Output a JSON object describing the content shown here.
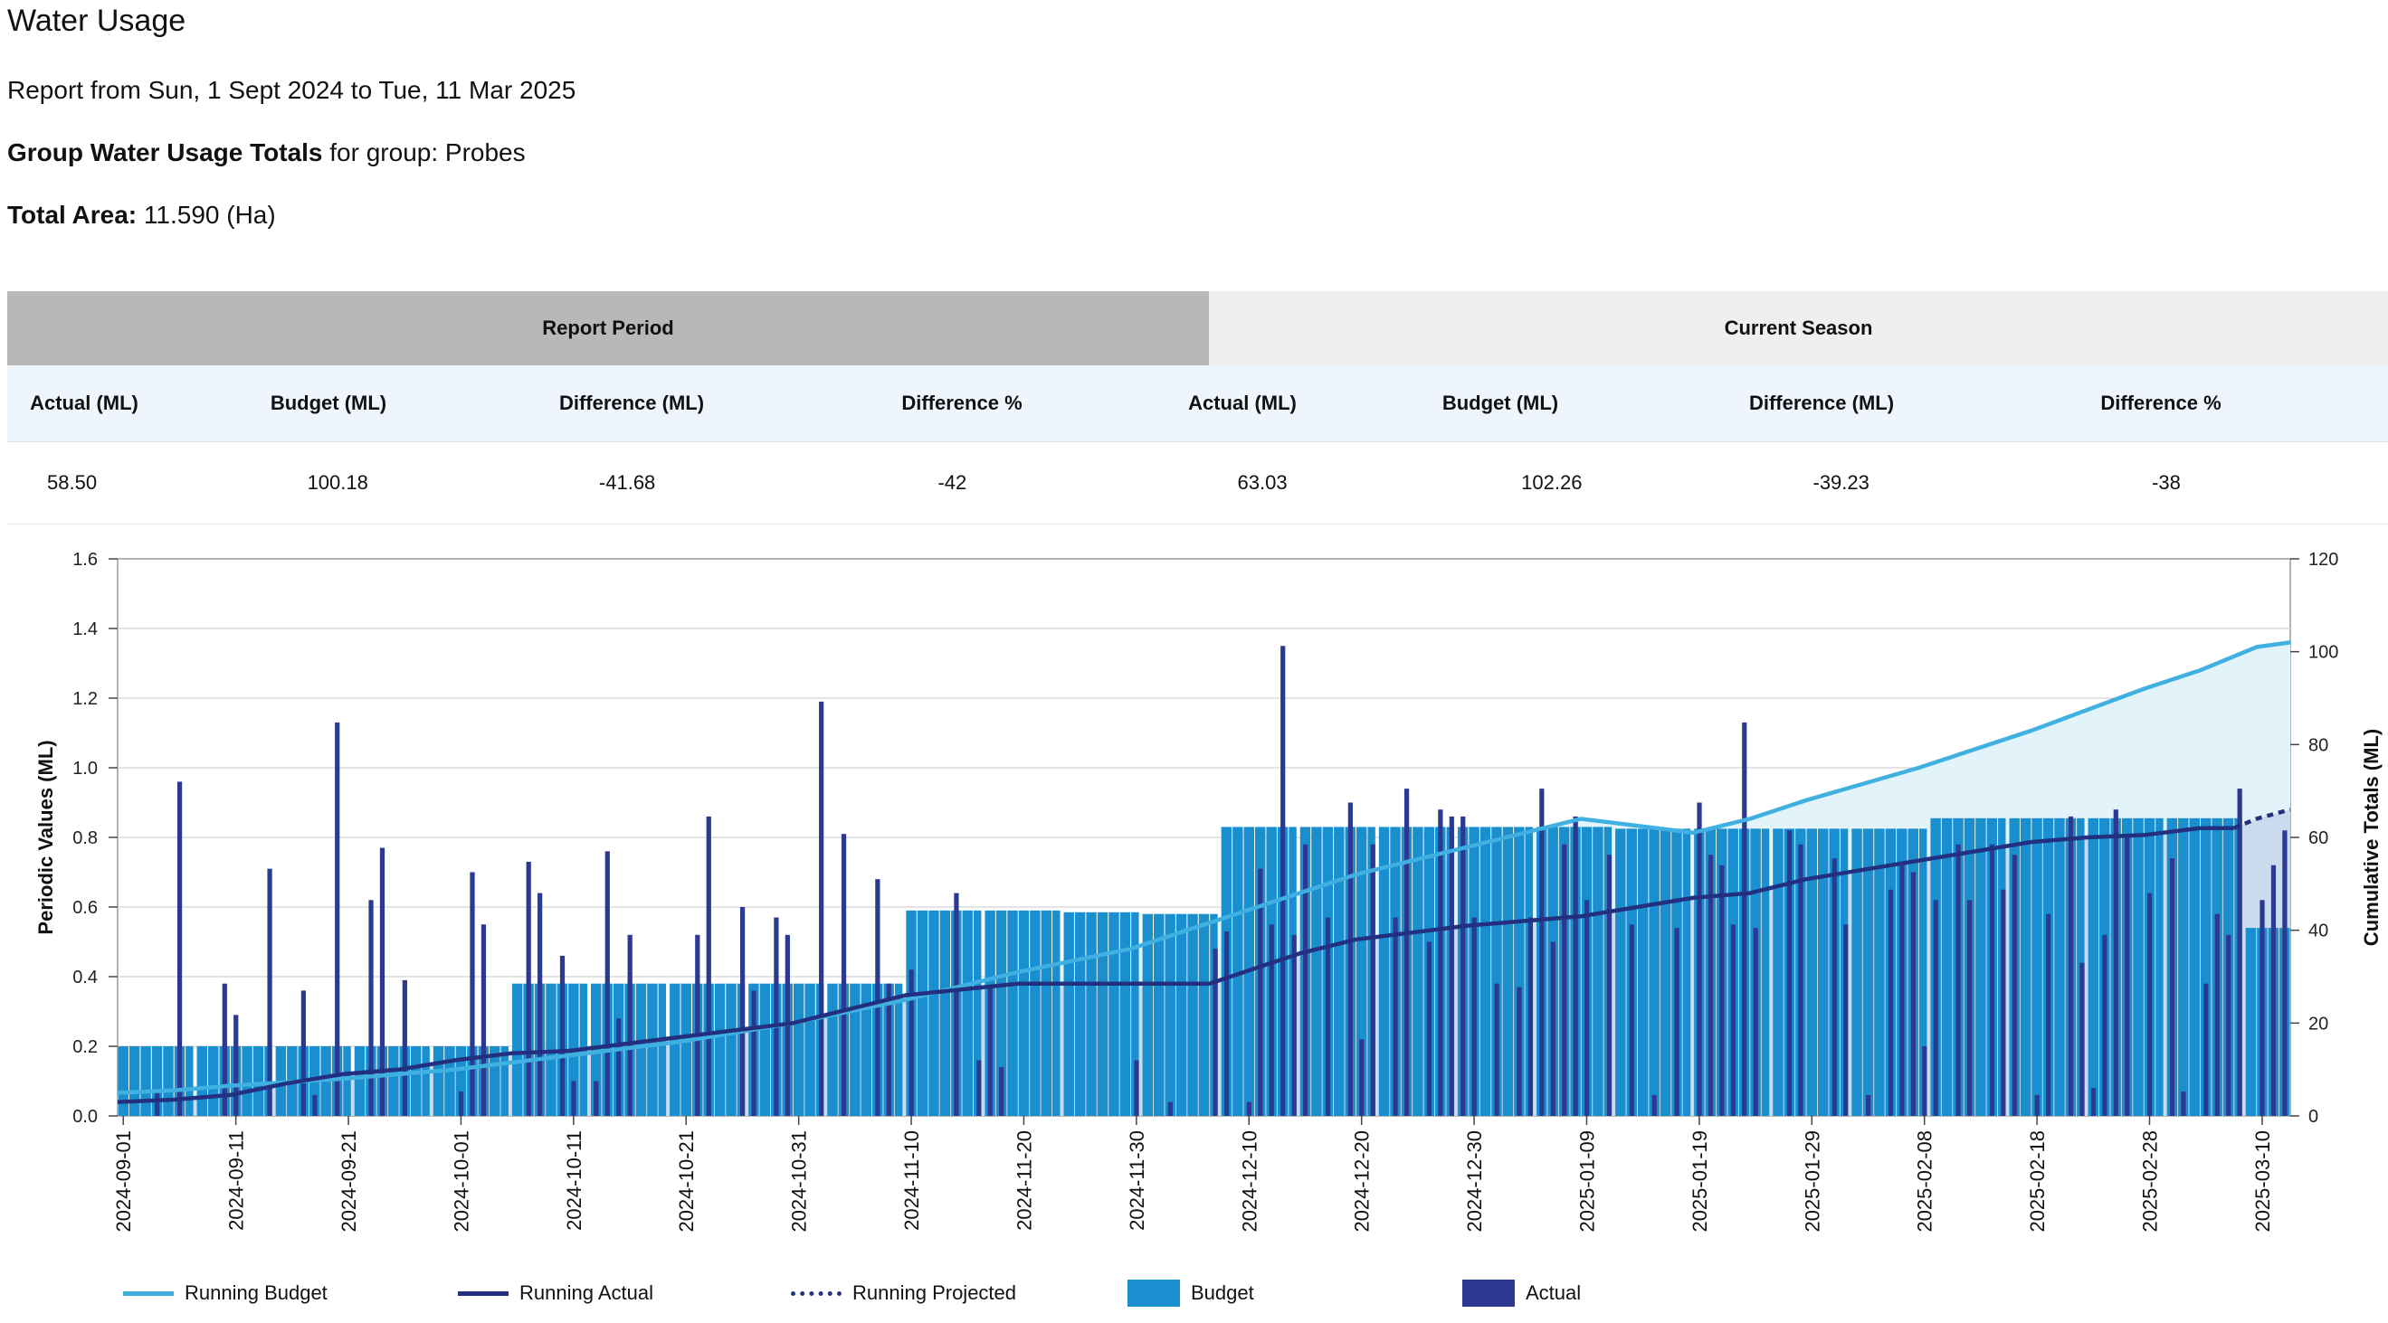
{
  "page": {
    "title": "Water Usage",
    "report_prefix": "Report from",
    "report_range": "Sun, 1 Sept 2024 to Tue, 11 Mar 2025",
    "group_label": "Group Water Usage Totals",
    "group_suffix": "for group: Probes",
    "area_label": "Total Area:",
    "area_value": "11.590 (Ha)"
  },
  "table": {
    "report_period": "Report Period",
    "current_season": "Current Season",
    "columns": [
      "Actual (ML)",
      "Budget (ML)",
      "Difference (ML)",
      "Difference %",
      "Actual (ML)",
      "Budget (ML)",
      "Difference (ML)",
      "Difference %"
    ],
    "values": [
      "58.50",
      "100.18",
      "-41.68",
      "-42",
      "63.03",
      "102.26",
      "-39.23",
      "-38"
    ]
  },
  "colors": {
    "budget_bar": "#1a8fd0",
    "actual_bar": "#2b3990",
    "running_budget": "#3fb0e0",
    "running_actual": "#23307f",
    "budget_area": "#e3f3fa",
    "actual_area": "#c9dbec"
  },
  "chart_data": {
    "type": "bar",
    "ylabel": "Periodic Values (ML)",
    "y2label": "Cumulative Totals (ML)",
    "ylim": [
      0,
      1.6
    ],
    "y2lim": [
      0,
      120
    ],
    "yticks": [
      "0.0",
      "0.2",
      "0.4",
      "0.6",
      "0.8",
      "1.0",
      "1.2",
      "1.4",
      "1.6"
    ],
    "y2ticks": [
      "0",
      "20",
      "40",
      "60",
      "80",
      "100",
      "120"
    ],
    "xticks": [
      "2024-09-01",
      "2024-09-11",
      "2024-09-21",
      "2024-10-01",
      "2024-10-11",
      "2024-10-21",
      "2024-10-31",
      "2024-11-10",
      "2024-11-20",
      "2024-11-30",
      "2024-12-10",
      "2024-12-20",
      "2024-12-30",
      "2025-01-09",
      "2025-01-19",
      "2025-01-29",
      "2025-02-08",
      "2025-02-18",
      "2025-02-28",
      "2025-03-10"
    ],
    "start_date": "2024-09-01",
    "num_days": 193,
    "weekly_budget": [
      0.2,
      0.2,
      0.2,
      0.2,
      0.2,
      0.38,
      0.38,
      0.38,
      0.38,
      0.38,
      0.59,
      0.59,
      0.585,
      0.58,
      0.83,
      0.83,
      0.83,
      0.83,
      0.83,
      0.825,
      0.825,
      0.825,
      0.825,
      0.855,
      0.855,
      0.855,
      0.855,
      0.54,
      0.54
    ],
    "actual_spikes": {
      "3": 0.07,
      "5": 0.96,
      "9": 0.38,
      "10": 0.29,
      "13": 0.71,
      "16": 0.36,
      "17": 0.06,
      "19": 1.13,
      "22": 0.62,
      "23": 0.77,
      "25": 0.39,
      "30": 0.07,
      "31": 0.7,
      "32": 0.55,
      "36": 0.73,
      "37": 0.64,
      "39": 0.46,
      "40": 0.1,
      "42": 0.1,
      "43": 0.76,
      "44": 0.28,
      "45": 0.52,
      "51": 0.52,
      "52": 0.86,
      "55": 0.6,
      "56": 0.36,
      "58": 0.57,
      "59": 0.52,
      "62": 1.19,
      "64": 0.81,
      "67": 0.68,
      "68": 0.38,
      "70": 0.42,
      "74": 0.64,
      "76": 0.16,
      "77": 0.37,
      "78": 0.14,
      "90": 0.16,
      "93": 0.04,
      "97": 0.48,
      "98": 0.53,
      "100": 0.04,
      "101": 0.71,
      "102": 0.55,
      "103": 1.35,
      "104": 0.52,
      "105": 0.78,
      "107": 0.57,
      "109": 0.9,
      "110": 0.22,
      "111": 0.78,
      "113": 0.57,
      "114": 0.94,
      "116": 0.5,
      "117": 0.88,
      "118": 0.86,
      "119": 0.86,
      "120": 0.57,
      "122": 0.38,
      "124": 0.37,
      "125": 0.57,
      "126": 0.94,
      "127": 0.5,
      "128": 0.78,
      "129": 0.86,
      "130": 0.62,
      "132": 0.75,
      "134": 0.55,
      "136": 0.06,
      "138": 0.54,
      "140": 0.9,
      "141": 0.75,
      "142": 0.72,
      "143": 0.55,
      "144": 1.13,
      "145": 0.54,
      "148": 0.82,
      "149": 0.78,
      "152": 0.74,
      "153": 0.55,
      "155": 0.06,
      "157": 0.65,
      "158": 0.72,
      "159": 0.7,
      "160": 0.2,
      "161": 0.62,
      "163": 0.78,
      "164": 0.62,
      "166": 0.78,
      "167": 0.65,
      "168": 0.75,
      "170": 0.06,
      "171": 0.58,
      "173": 0.86,
      "174": 0.44,
      "175": 0.08,
      "176": 0.52,
      "177": 0.88,
      "178": 0.8,
      "180": 0.64,
      "182": 0.74,
      "183": 0.07,
      "185": 0.38,
      "186": 0.58,
      "187": 0.52,
      "188": 0.94,
      "190": 0.62,
      "191": 0.72,
      "192": 0.82
    },
    "running_budget_points": [
      [
        0,
        5
      ],
      [
        5,
        5.5
      ],
      [
        10,
        6.5
      ],
      [
        20,
        8
      ],
      [
        30,
        10
      ],
      [
        40,
        13
      ],
      [
        50,
        16
      ],
      [
        60,
        20
      ],
      [
        70,
        25
      ],
      [
        80,
        31
      ],
      [
        90,
        36
      ],
      [
        100,
        44
      ],
      [
        110,
        52
      ],
      [
        120,
        58
      ],
      [
        130,
        64
      ],
      [
        140,
        61
      ],
      [
        145,
        64
      ],
      [
        150,
        68
      ],
      [
        160,
        75
      ],
      [
        170,
        83
      ],
      [
        180,
        92
      ],
      [
        185,
        96
      ],
      [
        190,
        101
      ],
      [
        193,
        102
      ]
    ],
    "running_actual_points": [
      [
        0,
        3
      ],
      [
        5,
        3.5
      ],
      [
        10,
        4.5
      ],
      [
        15,
        7
      ],
      [
        20,
        9
      ],
      [
        25,
        10
      ],
      [
        30,
        12
      ],
      [
        35,
        13.5
      ],
      [
        40,
        14
      ],
      [
        50,
        17
      ],
      [
        60,
        20
      ],
      [
        70,
        26
      ],
      [
        80,
        28.5
      ],
      [
        90,
        28.5
      ],
      [
        97,
        28.5
      ],
      [
        105,
        35
      ],
      [
        110,
        38
      ],
      [
        120,
        41
      ],
      [
        125,
        42
      ],
      [
        130,
        43
      ],
      [
        135,
        45
      ],
      [
        140,
        47
      ],
      [
        145,
        48
      ],
      [
        150,
        51
      ],
      [
        160,
        55
      ],
      [
        170,
        59
      ],
      [
        175,
        60
      ],
      [
        180,
        60.5
      ],
      [
        185,
        62
      ],
      [
        188,
        62
      ]
    ],
    "running_projected_points": [
      [
        188,
        62
      ],
      [
        190,
        64
      ],
      [
        193,
        66
      ]
    ],
    "legend": [
      "Running Budget",
      "Running Actual",
      "Running Projected",
      "Budget",
      "Actual"
    ]
  }
}
